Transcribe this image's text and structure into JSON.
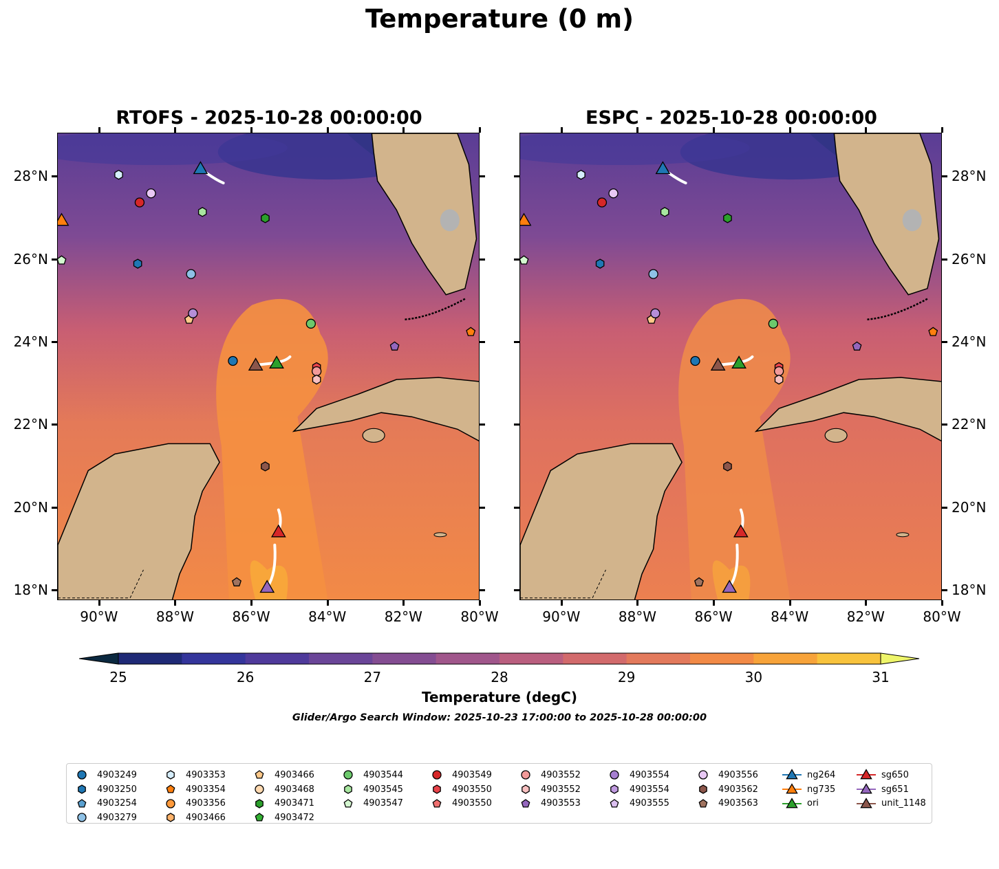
{
  "title": "Temperature (0 m)",
  "panels": [
    {
      "title": "RTOFS - 2025-10-28 00:00:00"
    },
    {
      "title": "ESPC - 2025-10-28 00:00:00"
    }
  ],
  "lat_ticks": [
    "28°N",
    "26°N",
    "24°N",
    "22°N",
    "20°N",
    "18°N"
  ],
  "lon_ticks": [
    "90°W",
    "88°W",
    "86°W",
    "84°W",
    "82°W",
    "80°W"
  ],
  "map_extent": {
    "lon": [
      -91.1,
      -80.0
    ],
    "lat": [
      17.75,
      29.05
    ]
  },
  "colors": {
    "land": "#d2b48c",
    "ocean_warm": "#f28a46",
    "ocean_mid": "#c85e73",
    "ocean_cool": "#5a3d95",
    "track": "#ffffff"
  },
  "colorbar": {
    "label": "Temperature (degC)",
    "ticks": [
      "25",
      "26",
      "27",
      "28",
      "29",
      "30",
      "31"
    ],
    "range": [
      25,
      31
    ],
    "colors": [
      "#0b2940",
      "#1f2a76",
      "#34359b",
      "#4f3a9b",
      "#6a4598",
      "#844d92",
      "#a0568b",
      "#ba5f7f",
      "#d26a6c",
      "#e37a5c",
      "#f28a46",
      "#f7a33a",
      "#f8c33d",
      "#eef56a"
    ]
  },
  "search_window": "Glider/Argo Search Window: 2025-10-23 17:00:00 to 2025-10-28 00:00:00",
  "markers": [
    {
      "label": "4903249",
      "shape": "circle",
      "color": "#1f77b4",
      "lon": -86.5,
      "lat": 23.55
    },
    {
      "label": "4903250",
      "shape": "hexagon",
      "color": "#1f77b4",
      "lon": -89.0,
      "lat": 25.9
    },
    {
      "label": "4903279",
      "shape": "circle",
      "color": "#8ec1e6",
      "lon": -87.6,
      "lat": 25.65
    },
    {
      "label": "4903353",
      "shape": "hexagon",
      "color": "#d6eefc",
      "lon": -89.5,
      "lat": 28.05
    },
    {
      "label": "4903354",
      "shape": "pentagon",
      "color": "#ff7f0e",
      "lon": -80.25,
      "lat": 24.25
    },
    {
      "label": "4903466",
      "shape": "pentagon",
      "color": "#ffc98a",
      "lon": -87.65,
      "lat": 24.55
    },
    {
      "label": "4903471",
      "shape": "hexagon",
      "color": "#2ca02c",
      "lon": -85.65,
      "lat": 27.0
    },
    {
      "label": "4903544",
      "shape": "circle",
      "color": "#6cc96c",
      "lon": -84.45,
      "lat": 24.45
    },
    {
      "label": "4903545",
      "shape": "hexagon",
      "color": "#a8e6a0",
      "lon": -87.3,
      "lat": 27.15
    },
    {
      "label": "4903547",
      "shape": "pentagon",
      "color": "#d4f7d0",
      "lon": -91.0,
      "lat": 25.98
    },
    {
      "label": "4903549",
      "shape": "circle",
      "color": "#d62728",
      "lon": -88.95,
      "lat": 27.38
    },
    {
      "label": "4903550",
      "shape": "hexagon",
      "color": "#e8434a",
      "lon": -84.3,
      "lat": 23.4
    },
    {
      "label": "4903552",
      "shape": "circle",
      "color": "#f29a99",
      "lon": -84.3,
      "lat": 23.3
    },
    {
      "label": "4903552",
      "shape": "hexagon",
      "color": "#f8c0c0",
      "lon": -84.3,
      "lat": 23.1
    },
    {
      "label": "4903553",
      "shape": "pentagon",
      "color": "#9467bd",
      "lon": -82.25,
      "lat": 23.9
    },
    {
      "label": "4903554",
      "shape": "circle",
      "color": "#b58ed8",
      "lon": -87.55,
      "lat": 24.7
    },
    {
      "label": "4903556",
      "shape": "circle",
      "color": "#e8c8f4",
      "lon": -88.65,
      "lat": 27.6
    },
    {
      "label": "4903562",
      "shape": "hexagon",
      "color": "#8c564b",
      "lon": -85.65,
      "lat": 21.0
    },
    {
      "label": "4903563",
      "shape": "pentagon",
      "color": "#a0735f",
      "lon": -86.4,
      "lat": 18.2
    },
    {
      "label": "ori",
      "shape": "triangle",
      "color": "#2ca02c",
      "lon": -85.35,
      "lat": 23.5
    },
    {
      "label": "ng264",
      "shape": "triangle",
      "color": "#1f77b4",
      "lon": -87.35,
      "lat": 28.2
    },
    {
      "label": "ng735",
      "shape": "triangle",
      "color": "#ff7f0e",
      "lon": -91.0,
      "lat": 26.95
    },
    {
      "label": "sg650",
      "shape": "triangle",
      "color": "#d62728",
      "lon": -85.3,
      "lat": 19.42
    },
    {
      "label": "sg651",
      "shape": "triangle",
      "color": "#9467bd",
      "lon": -85.6,
      "lat": 18.08
    },
    {
      "label": "unit_1148",
      "shape": "triangle",
      "color": "#8c564b",
      "lon": -85.9,
      "lat": 23.45
    }
  ],
  "legend": [
    [
      {
        "label": "4903249",
        "shape": "circle",
        "color": "#1f77b4"
      },
      {
        "label": "4903250",
        "shape": "hexagon",
        "color": "#1f77b4"
      },
      {
        "label": "4903254",
        "shape": "pentagon",
        "color": "#5aa0d0"
      },
      {
        "label": "4903279",
        "shape": "circle",
        "color": "#8ec1e6"
      }
    ],
    [
      {
        "label": "4903353",
        "shape": "hexagon",
        "color": "#d6eefc"
      },
      {
        "label": "4903354",
        "shape": "pentagon",
        "color": "#ff7f0e"
      },
      {
        "label": "4903356",
        "shape": "circle",
        "color": "#ff9a3c"
      },
      {
        "label": "4903466",
        "shape": "hexagon",
        "color": "#ffb36b"
      }
    ],
    [
      {
        "label": "4903466",
        "shape": "pentagon",
        "color": "#ffc98a"
      },
      {
        "label": "4903468",
        "shape": "circle",
        "color": "#ffd9b0"
      },
      {
        "label": "4903471",
        "shape": "hexagon",
        "color": "#2ca02c"
      },
      {
        "label": "4903472",
        "shape": "pentagon",
        "color": "#33b033"
      }
    ],
    [
      {
        "label": "4903544",
        "shape": "circle",
        "color": "#6cc96c"
      },
      {
        "label": "4903545",
        "shape": "hexagon",
        "color": "#a8e6a0"
      },
      {
        "label": "4903547",
        "shape": "pentagon",
        "color": "#d4f7d0"
      }
    ],
    [
      {
        "label": "4903549",
        "shape": "circle",
        "color": "#d62728"
      },
      {
        "label": "4903550",
        "shape": "hexagon",
        "color": "#e8434a"
      },
      {
        "label": "4903550",
        "shape": "pentagon",
        "color": "#f07070"
      }
    ],
    [
      {
        "label": "4903552",
        "shape": "circle",
        "color": "#f29a99"
      },
      {
        "label": "4903552",
        "shape": "hexagon",
        "color": "#f8c0c0"
      },
      {
        "label": "4903553",
        "shape": "pentagon",
        "color": "#9467bd"
      }
    ],
    [
      {
        "label": "4903554",
        "shape": "circle",
        "color": "#a67fd0"
      },
      {
        "label": "4903554",
        "shape": "hexagon",
        "color": "#c09ae0"
      },
      {
        "label": "4903555",
        "shape": "pentagon",
        "color": "#dcc0f0"
      }
    ],
    [
      {
        "label": "4903556",
        "shape": "circle",
        "color": "#e8c8f4"
      },
      {
        "label": "4903562",
        "shape": "hexagon",
        "color": "#8c564b"
      },
      {
        "label": "4903563",
        "shape": "pentagon",
        "color": "#a0735f"
      }
    ],
    [
      {
        "label": "ng264",
        "shape": "triangle-line",
        "color": "#1f77b4"
      },
      {
        "label": "ng735",
        "shape": "triangle-line",
        "color": "#ff7f0e"
      },
      {
        "label": "ori",
        "shape": "triangle-line",
        "color": "#2ca02c"
      }
    ],
    [
      {
        "label": "sg650",
        "shape": "triangle-line",
        "color": "#d62728"
      },
      {
        "label": "sg651",
        "shape": "triangle-line",
        "color": "#9467bd"
      },
      {
        "label": "unit_1148",
        "shape": "triangle-line",
        "color": "#8c564b"
      }
    ]
  ]
}
